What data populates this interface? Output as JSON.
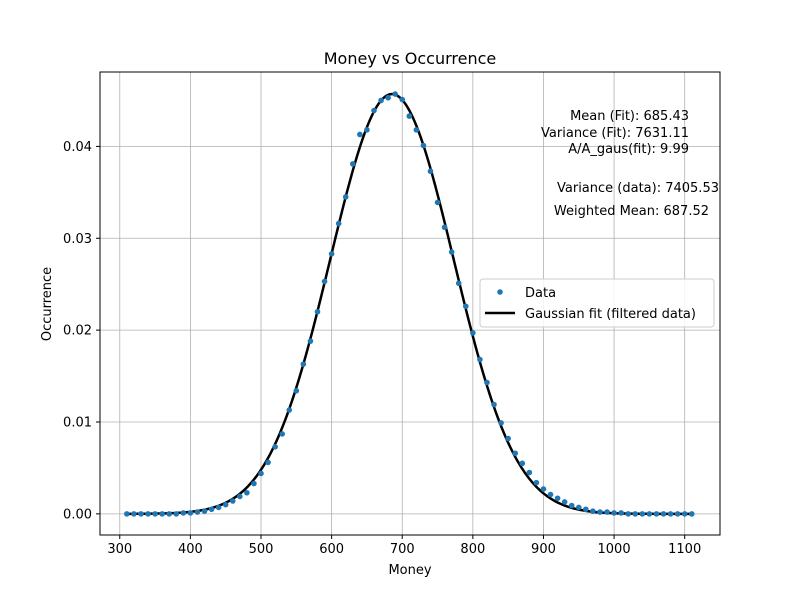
{
  "chart_data": {
    "type": "scatter",
    "title": "Money vs Occurrence",
    "xlabel": "Money",
    "ylabel": "Occurrence",
    "xlim": [
      272,
      1150
    ],
    "ylim": [
      -0.0023,
      0.0481
    ],
    "x_ticks": [
      300,
      400,
      500,
      600,
      700,
      800,
      900,
      1000,
      1100
    ],
    "y_ticks": [
      0.0,
      0.01,
      0.02,
      0.03,
      0.04
    ],
    "x_tick_labels": [
      "300",
      "400",
      "500",
      "600",
      "700",
      "800",
      "900",
      "1000",
      "1100"
    ],
    "y_tick_labels": [
      "0.00",
      "0.01",
      "0.02",
      "0.03",
      "0.04"
    ],
    "grid": true,
    "legend_placement": "center-right",
    "series": [
      {
        "name": "Data",
        "kind": "points",
        "color": "#1f77b4",
        "x": [
          310,
          320,
          330,
          340,
          350,
          360,
          370,
          380,
          390,
          400,
          410,
          420,
          430,
          440,
          450,
          460,
          470,
          480,
          490,
          500,
          510,
          520,
          530,
          540,
          550,
          560,
          570,
          580,
          590,
          600,
          610,
          620,
          630,
          640,
          650,
          660,
          670,
          680,
          690,
          700,
          710,
          720,
          730,
          740,
          750,
          760,
          770,
          780,
          790,
          800,
          810,
          820,
          830,
          840,
          850,
          860,
          870,
          880,
          890,
          900,
          910,
          920,
          930,
          940,
          950,
          960,
          970,
          980,
          990,
          1000,
          1010,
          1020,
          1030,
          1040,
          1050,
          1060,
          1070,
          1080,
          1090,
          1100,
          1110
        ],
        "y": [
          0.0,
          0.0,
          0.0,
          0.0,
          0.0,
          0.0,
          0.0,
          0.0,
          0.0001,
          0.0001,
          0.0002,
          0.0003,
          0.0005,
          0.0007,
          0.001,
          0.0014,
          0.0019,
          0.0023,
          0.0033,
          0.0044,
          0.0056,
          0.0073,
          0.0087,
          0.0113,
          0.0134,
          0.0163,
          0.0188,
          0.022,
          0.0253,
          0.0283,
          0.0316,
          0.0345,
          0.0381,
          0.0413,
          0.0418,
          0.0439,
          0.045,
          0.0453,
          0.0457,
          0.0451,
          0.0433,
          0.0418,
          0.0401,
          0.0373,
          0.0339,
          0.0312,
          0.0285,
          0.0251,
          0.0226,
          0.0197,
          0.0168,
          0.0143,
          0.0119,
          0.0099,
          0.0082,
          0.0066,
          0.0055,
          0.0045,
          0.0034,
          0.0027,
          0.0021,
          0.0017,
          0.0013,
          0.0009,
          0.0007,
          0.0005,
          0.0003,
          0.0002,
          0.0002,
          0.0001,
          0.0001,
          0.0,
          0.0,
          0.0,
          0.0,
          0.0,
          0.0,
          0.0,
          0.0,
          0.0,
          0.0
        ]
      },
      {
        "name": "Gaussian fit (filtered data)",
        "kind": "line",
        "color": "#000000",
        "mean": 685.43,
        "variance": 7631.11,
        "peak": 0.0457,
        "x_range": [
          310,
          1110
        ]
      }
    ],
    "annotations": [
      "Mean (Fit): 685.43",
      "Variance (Fit): 7631.11",
      "A/A_gaus(fit): 9.99",
      "Variance (data): 7405.53",
      "Weighted Mean: 687.52"
    ]
  }
}
